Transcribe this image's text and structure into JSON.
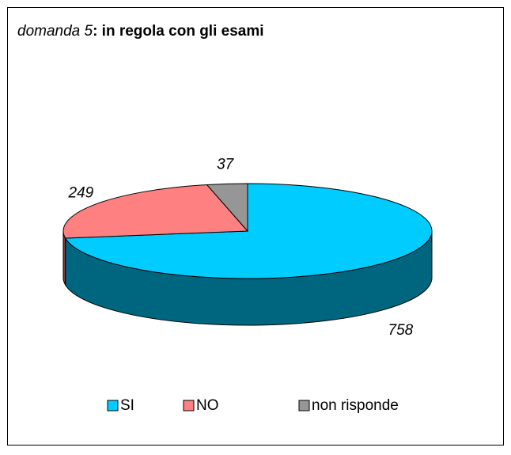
{
  "chart_data": {
    "type": "pie3d",
    "title": [
      "domanda 5",
      ": in regola con gli esami"
    ],
    "categories": [
      "SI",
      "NO",
      "non risponde"
    ],
    "values": [
      758,
      249,
      37
    ],
    "colors": [
      "#00ccff",
      "#ff8080",
      "#969696"
    ],
    "legend": "bottom"
  }
}
